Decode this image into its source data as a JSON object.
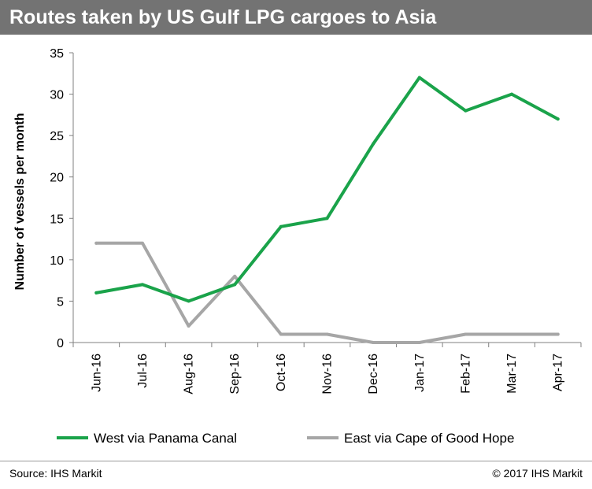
{
  "header": {
    "title": "Routes taken by US Gulf LPG cargoes to Asia"
  },
  "footer": {
    "source": "Source: IHS Markit",
    "copyright": "© 2017 IHS Markit"
  },
  "colors": {
    "west": "#1aa34a",
    "east": "#a6a6a6",
    "title_bg": "#737373"
  },
  "chart_data": {
    "type": "line",
    "title": "Routes taken by US Gulf LPG cargoes to Asia",
    "xlabel": "",
    "ylabel": "Number of vessels per month",
    "ylim": [
      0,
      35
    ],
    "yticks": [
      0,
      5,
      10,
      15,
      20,
      25,
      30,
      35
    ],
    "grid": false,
    "legend": "bottom",
    "categories": [
      "Jun-16",
      "Jul-16",
      "Aug-16",
      "Sep-16",
      "Oct-16",
      "Nov-16",
      "Dec-16",
      "Jan-17",
      "Feb-17",
      "Mar-17",
      "Apr-17"
    ],
    "series": [
      {
        "name": "West via Panama Canal",
        "color": "#1aa34a",
        "values": [
          6,
          7,
          5,
          7,
          14,
          15,
          24,
          32,
          28,
          30,
          27
        ]
      },
      {
        "name": "East via Cape of Good Hope",
        "color": "#a6a6a6",
        "values": [
          12,
          12,
          2,
          8,
          1,
          1,
          0,
          0,
          1,
          1,
          1
        ]
      }
    ]
  }
}
